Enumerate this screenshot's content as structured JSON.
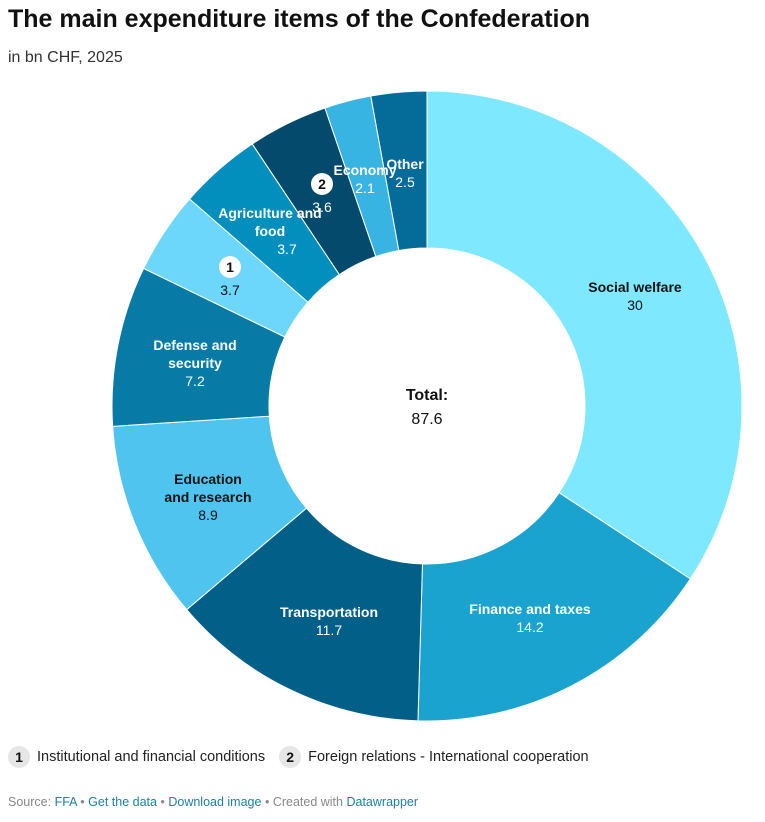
{
  "title": "The main expenditure items of the Confederation",
  "subtitle": "in bn CHF, 2025",
  "chart_data": {
    "type": "pie",
    "donut": true,
    "center_label": "Total:",
    "center_value": "87.6",
    "segments": [
      {
        "label": "Social welfare",
        "value": 30,
        "color": "#7ee8fe",
        "text_color": "#111111"
      },
      {
        "label": "Finance and taxes",
        "value": 14.2,
        "color": "#1aa3ce",
        "text_color": "#ffffff"
      },
      {
        "label": "Transportation",
        "value": 11.7,
        "color": "#025f87",
        "text_color": "#ffffff"
      },
      {
        "label": "Education and research",
        "value": 8.9,
        "color": "#4fc4ef",
        "text_color": "#111111"
      },
      {
        "label": "Defense and security",
        "value": 7.2,
        "color": "#077ba5",
        "text_color": "#ffffff"
      },
      {
        "label": "",
        "badge": "1",
        "value": 3.7,
        "color": "#6dd6fb",
        "text_color": "#111111"
      },
      {
        "label": "Agriculture and food",
        "value": 3.7,
        "color": "#028fbd",
        "text_color": "#ffffff"
      },
      {
        "label": "",
        "badge": "2",
        "value": 3.6,
        "color": "#044a6c",
        "text_color": "#ffffff"
      },
      {
        "label": "Economy",
        "value": 2.1,
        "color": "#38b4e3",
        "text_color": "#ffffff"
      },
      {
        "label": "Other",
        "value": 2.5,
        "color": "#056c99",
        "text_color": "#ffffff"
      }
    ]
  },
  "legend": [
    {
      "badge": "1",
      "text": "Institutional and financial conditions"
    },
    {
      "badge": "2",
      "text": "Foreign relations - International cooperation"
    }
  ],
  "footer": {
    "source_label": "Source:",
    "source_link": "FFA",
    "sep": "•",
    "get_data": "Get the data",
    "download": "Download image",
    "created_with": "Created with",
    "tool": "Datawrapper"
  }
}
